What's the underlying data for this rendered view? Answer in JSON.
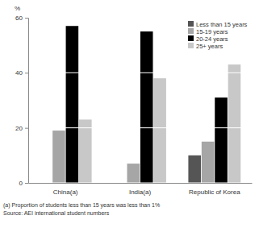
{
  "chart_data": {
    "type": "bar",
    "categories": [
      "China(a)",
      "India(a)",
      "Republic of Korea"
    ],
    "series": [
      {
        "name": "Less than 15 years",
        "color": "#555555",
        "values": [
          0,
          0,
          10
        ]
      },
      {
        "name": "15-19 years",
        "color": "#a6a6a6",
        "values": [
          19,
          7,
          15
        ]
      },
      {
        "name": "20-24 years",
        "color": "#000000",
        "values": [
          57,
          55,
          31
        ]
      },
      {
        "name": "25+ years",
        "color": "#c8c8c8",
        "values": [
          23,
          38,
          43
        ]
      }
    ],
    "ylim": [
      0,
      60
    ],
    "yticks": [
      0,
      20,
      40,
      60
    ],
    "grid": true,
    "legend": "upper right",
    "y_label": "%",
    "annotations": [
      "(a) Proportion of students less than 15 years was less than 1%",
      "Source: AEI international student numbers"
    ]
  }
}
